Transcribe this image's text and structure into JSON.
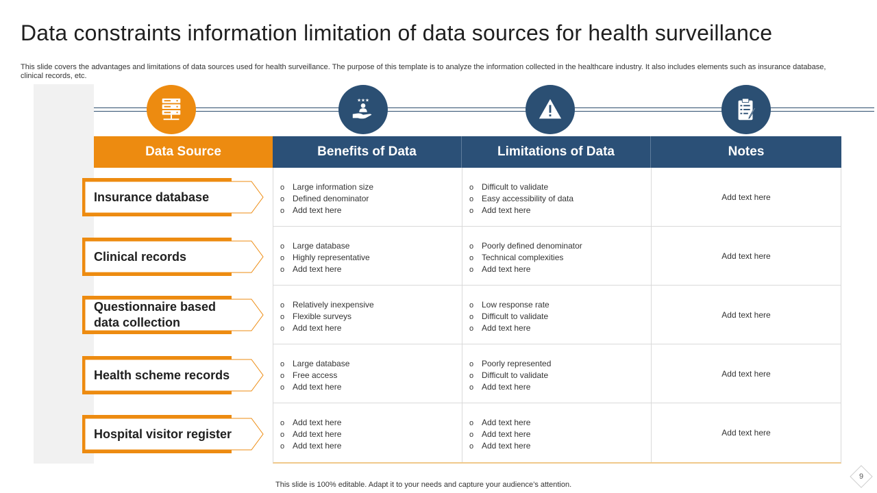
{
  "slide": {
    "title": "Data constraints information limitation of data sources for health surveillance",
    "subtitle": "This slide covers the advantages and limitations of data sources used for health surveillance. The purpose of this template is to analyze the information collected in the healthcare industry. It also includes elements such as insurance database, clinical records, etc.",
    "footer": "This slide is 100% editable. Adapt it to your needs and capture your audience’s attention.",
    "page_number": "9"
  },
  "colors": {
    "orange": "#ed8b10",
    "navy": "#2b5077"
  },
  "icons": [
    "server-icon",
    "hand-rating-icon",
    "warning-icon",
    "clipboard-icon"
  ],
  "headers": {
    "source": "Data Source",
    "benefits": "Benefits of Data",
    "limitations": "Limitations  of Data",
    "notes": "Notes"
  },
  "rows": [
    {
      "source": "Insurance database",
      "benefits": [
        "Large information  size",
        "Defined  denominator",
        "Add text here"
      ],
      "limitations": [
        "Difficult to validate",
        "Easy accessibility of data",
        "Add text here"
      ],
      "note": "Add text here"
    },
    {
      "source": "Clinical records",
      "benefits": [
        "Large database",
        "Highly representative",
        "Add text here"
      ],
      "limitations": [
        "Poorly defined  denominator",
        "Technical  complexities",
        "Add text here"
      ],
      "note": "Add text here"
    },
    {
      "source": "Questionnaire based data collection",
      "benefits": [
        "Relatively  inexpensive",
        "Flexible surveys",
        "Add text here"
      ],
      "limitations": [
        "Low response rate",
        "Difficult to validate",
        "Add text here"
      ],
      "note": "Add text here"
    },
    {
      "source": "Health scheme records",
      "benefits": [
        "Large database",
        "Free access",
        "Add text here"
      ],
      "limitations": [
        "Poorly represented",
        "Difficult to validate",
        "Add text here"
      ],
      "note": "Add text here"
    },
    {
      "source": "Hospital visitor register",
      "benefits": [
        "Add text here",
        "Add text here",
        "Add text here"
      ],
      "limitations": [
        "Add text here",
        "Add text here",
        "Add text here"
      ],
      "note": "Add text here"
    }
  ]
}
